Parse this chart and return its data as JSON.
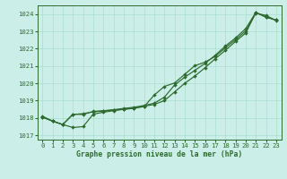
{
  "title": "Graphe pression niveau de la mer (hPa)",
  "bg_color": "#cceee8",
  "grid_color": "#aaddcc",
  "line_color": "#2d6a2d",
  "xlim_min": -0.5,
  "xlim_max": 23.5,
  "ylim_min": 1016.75,
  "ylim_max": 1024.5,
  "yticks": [
    1017,
    1018,
    1019,
    1020,
    1021,
    1022,
    1023,
    1024
  ],
  "xticks": [
    0,
    1,
    2,
    3,
    4,
    5,
    6,
    7,
    8,
    9,
    10,
    11,
    12,
    13,
    14,
    15,
    16,
    17,
    18,
    19,
    20,
    21,
    22,
    23
  ],
  "s1_x": [
    0,
    1,
    2,
    3,
    4,
    5,
    6,
    7,
    8,
    9,
    10,
    11,
    12,
    13,
    14,
    15,
    16,
    17,
    18,
    19,
    20,
    21,
    22,
    23
  ],
  "s1_y": [
    1018.05,
    1017.82,
    1017.62,
    1017.45,
    1017.5,
    1018.22,
    1018.33,
    1018.42,
    1018.5,
    1018.58,
    1018.65,
    1019.32,
    1019.82,
    1020.02,
    1020.52,
    1021.02,
    1021.22,
    1021.55,
    1022.05,
    1022.52,
    1023.02,
    1024.05,
    1023.92,
    1023.62
  ],
  "s2_x": [
    0,
    1,
    2,
    3,
    4,
    5,
    6,
    7,
    8,
    9,
    10,
    11,
    12,
    13,
    14,
    15,
    16,
    17,
    18,
    19,
    20,
    21,
    22,
    23
  ],
  "s2_y": [
    1018.05,
    1017.82,
    1017.62,
    1018.2,
    1018.25,
    1018.35,
    1018.4,
    1018.45,
    1018.5,
    1018.55,
    1018.68,
    1018.78,
    1019.0,
    1019.5,
    1020.0,
    1020.42,
    1020.9,
    1021.42,
    1021.9,
    1022.42,
    1022.9,
    1024.08,
    1023.82,
    1023.65
  ],
  "s3_x": [
    0,
    1,
    2,
    3,
    4,
    5,
    6,
    7,
    8,
    9,
    10,
    11,
    12,
    13,
    14,
    15,
    16,
    17,
    18,
    19,
    20,
    21,
    22,
    23
  ],
  "s3_y": [
    1018.1,
    1017.82,
    1017.62,
    1018.22,
    1018.2,
    1018.38,
    1018.42,
    1018.48,
    1018.55,
    1018.62,
    1018.72,
    1018.85,
    1019.2,
    1019.9,
    1020.35,
    1020.75,
    1021.15,
    1021.62,
    1022.15,
    1022.62,
    1023.15,
    1024.1,
    1023.82,
    1023.65
  ]
}
